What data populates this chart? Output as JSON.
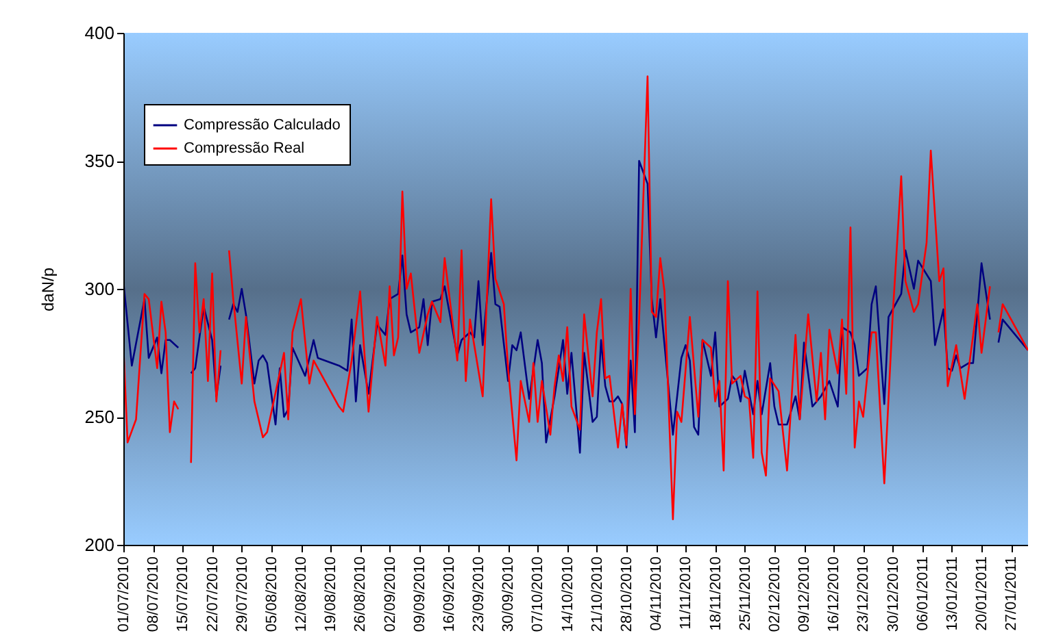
{
  "chart_data": {
    "type": "line",
    "ylabel": "daN/p",
    "xlim": [
      "2010-07-01",
      "2011-01-31"
    ],
    "ylim": [
      200,
      400
    ],
    "yticks": [
      200,
      250,
      300,
      350,
      400
    ],
    "xticks": [
      {
        "value": "2010-07-01",
        "label": "01/07/2010"
      },
      {
        "value": "2010-07-08",
        "label": "08/07/2010"
      },
      {
        "value": "2010-07-15",
        "label": "15/07/2010"
      },
      {
        "value": "2010-07-22",
        "label": "22/07/2010"
      },
      {
        "value": "2010-07-29",
        "label": "29/07/2010"
      },
      {
        "value": "2010-08-05",
        "label": "05/08/2010"
      },
      {
        "value": "2010-08-12",
        "label": "12/08/2010"
      },
      {
        "value": "2010-08-19",
        "label": "19/08/2010"
      },
      {
        "value": "2010-08-26",
        "label": "26/08/2010"
      },
      {
        "value": "2010-09-02",
        "label": "02/09/2010"
      },
      {
        "value": "2010-09-09",
        "label": "09/09/2010"
      },
      {
        "value": "2010-09-16",
        "label": "16/09/2010"
      },
      {
        "value": "2010-09-23",
        "label": "23/09/2010"
      },
      {
        "value": "2010-09-30",
        "label": "30/09/2010"
      },
      {
        "value": "2010-10-07",
        "label": "07/10/2010"
      },
      {
        "value": "2010-10-14",
        "label": "14/10/2010"
      },
      {
        "value": "2010-10-21",
        "label": "21/10/2010"
      },
      {
        "value": "2010-10-28",
        "label": "28/10/2010"
      },
      {
        "value": "2010-11-04",
        "label": "04/11/2010"
      },
      {
        "value": "2010-11-11",
        "label": "11/11/2010"
      },
      {
        "value": "2010-11-18",
        "label": "18/11/2010"
      },
      {
        "value": "2010-11-25",
        "label": "25/11/2010"
      },
      {
        "value": "2010-12-02",
        "label": "02/12/2010"
      },
      {
        "value": "2010-12-09",
        "label": "09/12/2010"
      },
      {
        "value": "2010-12-16",
        "label": "16/12/2010"
      },
      {
        "value": "2010-12-23",
        "label": "23/12/2010"
      },
      {
        "value": "2010-12-30",
        "label": "30/12/2010"
      },
      {
        "value": "2011-01-06",
        "label": "06/01/2011"
      },
      {
        "value": "2011-01-13",
        "label": "13/01/2011"
      },
      {
        "value": "2011-01-20",
        "label": "20/01/2011"
      },
      {
        "value": "2011-01-27",
        "label": "27/01/2011"
      }
    ],
    "grid": false,
    "legend": "top left",
    "marker": "none",
    "line_style": "solid",
    "series": [
      {
        "name": "Compressão Calculado",
        "color": "#000080",
        "x": [
          "2010-07-01",
          "2010-07-03",
          "2010-07-06",
          "2010-07-07",
          "2010-07-09",
          "2010-07-10",
          "2010-07-11",
          "2010-07-12",
          "2010-07-14",
          "2010-07-16",
          "2010-07-17",
          "2010-07-18",
          "2010-07-20",
          "2010-07-22",
          "2010-07-23",
          "2010-07-24",
          "2010-07-25",
          "2010-07-26",
          "2010-07-27",
          "2010-07-28",
          "2010-07-29",
          "2010-07-30",
          "2010-08-01",
          "2010-08-02",
          "2010-08-03",
          "2010-08-04",
          "2010-08-06",
          "2010-08-07",
          "2010-08-08",
          "2010-08-09",
          "2010-08-10",
          "2010-08-13",
          "2010-08-15",
          "2010-08-16",
          "2010-08-21",
          "2010-08-23",
          "2010-08-24",
          "2010-08-25",
          "2010-08-26",
          "2010-08-28",
          "2010-08-30",
          "2010-09-01",
          "2010-09-02",
          "2010-09-04",
          "2010-09-05",
          "2010-09-06",
          "2010-09-07",
          "2010-09-09",
          "2010-09-10",
          "2010-09-11",
          "2010-09-12",
          "2010-09-14",
          "2010-09-15",
          "2010-09-18",
          "2010-09-19",
          "2010-09-21",
          "2010-09-22",
          "2010-09-23",
          "2010-09-24",
          "2010-09-26",
          "2010-09-27",
          "2010-09-28",
          "2010-09-30",
          "2010-10-01",
          "2010-10-02",
          "2010-10-03",
          "2010-10-05",
          "2010-10-07",
          "2010-10-08",
          "2010-10-09",
          "2010-10-11",
          "2010-10-13",
          "2010-10-14",
          "2010-10-15",
          "2010-10-17",
          "2010-10-18",
          "2010-10-20",
          "2010-10-21",
          "2010-10-22",
          "2010-10-23",
          "2010-10-24",
          "2010-10-25",
          "2010-10-26",
          "2010-10-27",
          "2010-10-28",
          "2010-10-29",
          "2010-10-30",
          "2010-10-31",
          "2010-11-02",
          "2010-11-03",
          "2010-11-04",
          "2010-11-05",
          "2010-11-08",
          "2010-11-10",
          "2010-11-11",
          "2010-11-12",
          "2010-11-13",
          "2010-11-14",
          "2010-11-15",
          "2010-11-17",
          "2010-11-18",
          "2010-11-19",
          "2010-11-21",
          "2010-11-22",
          "2010-11-23",
          "2010-11-24",
          "2010-11-25",
          "2010-11-27",
          "2010-11-28",
          "2010-11-29",
          "2010-12-01",
          "2010-12-02",
          "2010-12-03",
          "2010-12-05",
          "2010-12-07",
          "2010-12-08",
          "2010-12-09",
          "2010-12-11",
          "2010-12-13",
          "2010-12-15",
          "2010-12-17",
          "2010-12-18",
          "2010-12-20",
          "2010-12-21",
          "2010-12-22",
          "2010-12-24",
          "2010-12-25",
          "2010-12-26",
          "2010-12-28",
          "2010-12-29",
          "2011-01-01",
          "2011-01-02",
          "2011-01-04",
          "2011-01-05",
          "2011-01-08",
          "2011-01-09",
          "2011-01-11",
          "2011-01-12",
          "2011-01-13",
          "2011-01-14",
          "2011-01-15",
          "2011-01-17",
          "2011-01-18",
          "2011-01-20",
          "2011-01-22",
          "2011-01-23",
          "2011-01-24",
          "2011-01-25",
          "2011-01-31"
        ],
        "values": [
          303,
          270,
          296,
          273,
          281,
          267,
          280,
          280,
          277,
          null,
          267,
          269,
          293,
          280,
          258,
          270,
          null,
          288,
          294,
          291,
          300,
          290,
          263,
          272,
          274,
          271,
          247,
          269,
          250,
          253,
          277,
          266,
          280,
          273,
          270,
          268,
          288,
          256,
          278,
          259,
          286,
          282,
          296,
          298,
          313,
          290,
          283,
          285,
          296,
          278,
          295,
          296,
          301,
          274,
          280,
          283,
          281,
          303,
          278,
          314,
          294,
          293,
          264,
          278,
          276,
          283,
          257,
          280,
          271,
          240,
          258,
          280,
          259,
          275,
          236,
          275,
          248,
          250,
          280,
          262,
          256,
          256,
          258,
          255,
          238,
          272,
          244,
          350,
          341,
          296,
          281,
          296,
          243,
          273,
          278,
          272,
          246,
          243,
          280,
          266,
          283,
          254,
          257,
          266,
          264,
          256,
          268,
          251,
          264,
          251,
          271,
          254,
          247,
          247,
          258,
          249,
          279,
          254,
          258,
          264,
          254,
          285,
          283,
          278,
          266,
          269,
          294,
          301,
          255,
          289,
          298,
          315,
          300,
          311,
          303,
          278,
          292,
          269,
          268,
          274,
          269,
          271,
          271,
          310,
          288,
          null,
          279,
          288,
          276
        ]
      },
      {
        "name": "Compressão Real",
        "color": "#ff0000",
        "x": [
          "2010-07-01",
          "2010-07-02",
          "2010-07-04",
          "2010-07-06",
          "2010-07-07",
          "2010-07-09",
          "2010-07-10",
          "2010-07-11",
          "2010-07-12",
          "2010-07-13",
          "2010-07-14",
          "2010-07-16",
          "2010-07-17",
          "2010-07-18",
          "2010-07-19",
          "2010-07-20",
          "2010-07-21",
          "2010-07-22",
          "2010-07-23",
          "2010-07-24",
          "2010-07-25",
          "2010-07-26",
          "2010-07-27",
          "2010-07-29",
          "2010-07-30",
          "2010-08-01",
          "2010-08-03",
          "2010-08-04",
          "2010-08-08",
          "2010-08-09",
          "2010-08-10",
          "2010-08-12",
          "2010-08-14",
          "2010-08-15",
          "2010-08-21",
          "2010-08-22",
          "2010-08-24",
          "2010-08-26",
          "2010-08-28",
          "2010-08-30",
          "2010-09-01",
          "2010-09-02",
          "2010-09-03",
          "2010-09-04",
          "2010-09-05",
          "2010-09-06",
          "2010-09-07",
          "2010-09-09",
          "2010-09-11",
          "2010-09-12",
          "2010-09-14",
          "2010-09-15",
          "2010-09-18",
          "2010-09-19",
          "2010-09-20",
          "2010-09-21",
          "2010-09-24",
          "2010-09-26",
          "2010-09-27",
          "2010-09-29",
          "2010-09-30",
          "2010-10-02",
          "2010-10-03",
          "2010-10-05",
          "2010-10-06",
          "2010-10-07",
          "2010-10-08",
          "2010-10-10",
          "2010-10-11",
          "2010-10-12",
          "2010-10-13",
          "2010-10-14",
          "2010-10-15",
          "2010-10-17",
          "2010-10-18",
          "2010-10-20",
          "2010-10-21",
          "2010-10-22",
          "2010-10-23",
          "2010-10-24",
          "2010-10-26",
          "2010-10-27",
          "2010-10-28",
          "2010-10-29",
          "2010-10-30",
          "2010-10-31",
          "2010-11-02",
          "2010-11-03",
          "2010-11-04",
          "2010-11-05",
          "2010-11-06",
          "2010-11-08",
          "2010-11-09",
          "2010-11-10",
          "2010-11-12",
          "2010-11-14",
          "2010-11-15",
          "2010-11-17",
          "2010-11-18",
          "2010-11-19",
          "2010-11-20",
          "2010-11-21",
          "2010-11-22",
          "2010-11-24",
          "2010-11-25",
          "2010-11-26",
          "2010-11-27",
          "2010-11-28",
          "2010-11-29",
          "2010-11-30",
          "2010-12-01",
          "2010-12-03",
          "2010-12-05",
          "2010-12-07",
          "2010-12-08",
          "2010-12-10",
          "2010-12-12",
          "2010-12-13",
          "2010-12-14",
          "2010-12-15",
          "2010-12-17",
          "2010-12-18",
          "2010-12-19",
          "2010-12-20",
          "2010-12-21",
          "2010-12-22",
          "2010-12-23",
          "2010-12-25",
          "2010-12-26",
          "2010-12-28",
          "2010-12-30",
          "2011-01-01",
          "2011-01-02",
          "2011-01-04",
          "2011-01-05",
          "2011-01-07",
          "2011-01-08",
          "2011-01-10",
          "2011-01-11",
          "2011-01-12",
          "2011-01-14",
          "2011-01-16",
          "2011-01-19",
          "2011-01-20",
          "2011-01-22",
          "2011-01-23",
          "2011-01-24",
          "2011-01-25",
          "2011-01-31"
        ],
        "values": [
          278,
          240,
          249,
          298,
          296,
          269,
          295,
          283,
          244,
          256,
          253,
          null,
          232,
          310,
          283,
          296,
          264,
          306,
          256,
          276,
          null,
          315,
          296,
          263,
          289,
          256,
          242,
          244,
          275,
          249,
          283,
          296,
          263,
          272,
          254,
          252,
          272,
          299,
          252,
          289,
          270,
          301,
          274,
          281,
          338,
          300,
          306,
          275,
          290,
          295,
          287,
          312,
          272,
          315,
          264,
          288,
          258,
          335,
          304,
          294,
          269,
          233,
          264,
          248,
          271,
          248,
          264,
          243,
          262,
          274,
          264,
          285,
          254,
          245,
          290,
          258,
          283,
          296,
          265,
          266,
          238,
          255,
          239,
          300,
          251,
          288,
          383,
          291,
          289,
          312,
          299,
          210,
          252,
          248,
          289,
          250,
          280,
          277,
          256,
          264,
          229,
          303,
          263,
          266,
          258,
          257,
          234,
          299,
          236,
          227,
          265,
          260,
          229,
          282,
          249,
          290,
          256,
          275,
          249,
          284,
          267,
          288,
          259,
          324,
          238,
          256,
          250,
          283,
          283,
          224,
          290,
          344,
          303,
          291,
          294,
          318,
          354,
          303,
          308,
          262,
          278,
          257,
          294,
          275,
          301,
          null,
          283,
          294,
          276
        ]
      }
    ]
  }
}
